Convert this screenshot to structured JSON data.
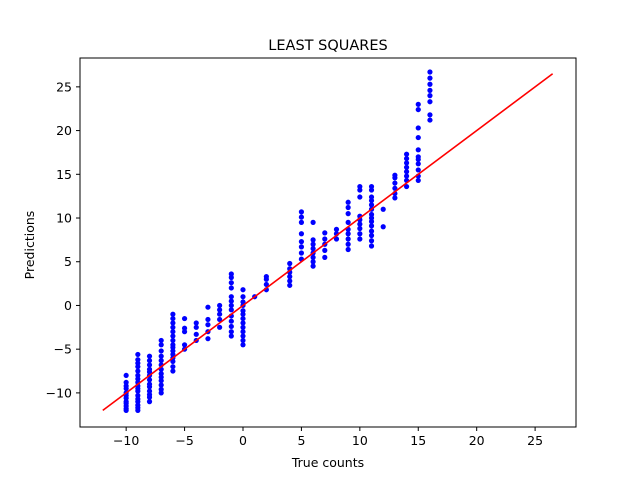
{
  "chart_data": {
    "type": "scatter",
    "title": "LEAST SQUARES",
    "xlabel": "True counts",
    "ylabel": "Predictions",
    "xlim": [
      -13.95,
      28.5
    ],
    "ylim": [
      -13.9,
      28.3
    ],
    "xticks": [
      -10,
      -5,
      0,
      5,
      10,
      15,
      20,
      25
    ],
    "yticks": [
      -10,
      -5,
      0,
      5,
      10,
      15,
      20,
      25
    ],
    "xtick_labels": [
      "−10",
      "−5",
      "0",
      "5",
      "10",
      "15",
      "20",
      "25"
    ],
    "ytick_labels": [
      "−10",
      "−5",
      "0",
      "5",
      "10",
      "15",
      "20",
      "25"
    ],
    "grid": false,
    "point_color": "#0000ff",
    "line_color": "#ff0000",
    "fit_line": {
      "x": [
        -12,
        26.5
      ],
      "y": [
        -12,
        26.5
      ]
    },
    "points": [
      [
        -10,
        -12
      ],
      [
        -10,
        -11.8
      ],
      [
        -10,
        -11.5
      ],
      [
        -10,
        -11.2
      ],
      [
        -10,
        -11
      ],
      [
        -10,
        -10.6
      ],
      [
        -10,
        -10.3
      ],
      [
        -10,
        -10
      ],
      [
        -10,
        -9.5
      ],
      [
        -10,
        -9.2
      ],
      [
        -10,
        -8.8
      ],
      [
        -10,
        -8
      ],
      [
        -9,
        -12
      ],
      [
        -9,
        -11.7
      ],
      [
        -9,
        -11.4
      ],
      [
        -9,
        -11
      ],
      [
        -9,
        -10.7
      ],
      [
        -9,
        -10.3
      ],
      [
        -9,
        -9.8
      ],
      [
        -9,
        -9.5
      ],
      [
        -9,
        -9.2
      ],
      [
        -9,
        -8.8
      ],
      [
        -9,
        -8.4
      ],
      [
        -9,
        -8
      ],
      [
        -9,
        -7.5
      ],
      [
        -9,
        -7
      ],
      [
        -9,
        -6.6
      ],
      [
        -9,
        -6.2
      ],
      [
        -9,
        -5.6
      ],
      [
        -8,
        -11
      ],
      [
        -8,
        -10.5
      ],
      [
        -8,
        -10.2
      ],
      [
        -8,
        -9.8
      ],
      [
        -8,
        -9.3
      ],
      [
        -8,
        -9
      ],
      [
        -8,
        -8.5
      ],
      [
        -8,
        -8
      ],
      [
        -8,
        -7.6
      ],
      [
        -8,
        -7.3
      ],
      [
        -8,
        -6.8
      ],
      [
        -8,
        -6.3
      ],
      [
        -8,
        -5.8
      ],
      [
        -7,
        -10
      ],
      [
        -7,
        -9.6
      ],
      [
        -7,
        -9.1
      ],
      [
        -7,
        -8.6
      ],
      [
        -7,
        -8.2
      ],
      [
        -7,
        -7.8
      ],
      [
        -7,
        -7.3
      ],
      [
        -7,
        -6.8
      ],
      [
        -7,
        -6.3
      ],
      [
        -7,
        -5.8
      ],
      [
        -7,
        -5.2
      ],
      [
        -7,
        -4.5
      ],
      [
        -7,
        -4
      ],
      [
        -6,
        -7.5
      ],
      [
        -6,
        -7
      ],
      [
        -6,
        -6.4
      ],
      [
        -6,
        -6
      ],
      [
        -6,
        -5.6
      ],
      [
        -6,
        -5.2
      ],
      [
        -6,
        -4.8
      ],
      [
        -6,
        -4.5
      ],
      [
        -6,
        -4
      ],
      [
        -6,
        -3.5
      ],
      [
        -6,
        -3
      ],
      [
        -6,
        -2.5
      ],
      [
        -6,
        -2
      ],
      [
        -6,
        -1.5
      ],
      [
        -6,
        -1
      ],
      [
        -5,
        -5
      ],
      [
        -5,
        -4.5
      ],
      [
        -5,
        -3
      ],
      [
        -5,
        -2.6
      ],
      [
        -5,
        -1.5
      ],
      [
        -4,
        -4
      ],
      [
        -4,
        -3.3
      ],
      [
        -4,
        -2.5
      ],
      [
        -4,
        -2
      ],
      [
        -3,
        -3.8
      ],
      [
        -3,
        -3
      ],
      [
        -3,
        -2.2
      ],
      [
        -3,
        -1.6
      ],
      [
        -3,
        -0.2
      ],
      [
        -2,
        -2.5
      ],
      [
        -2,
        -1.6
      ],
      [
        -2,
        -1
      ],
      [
        -2,
        -0.5
      ],
      [
        -2,
        0
      ],
      [
        -1,
        -3.5
      ],
      [
        -1,
        -3
      ],
      [
        -1,
        -2.4
      ],
      [
        -1,
        -1.8
      ],
      [
        -1,
        -1.2
      ],
      [
        -1,
        -0.5
      ],
      [
        -1,
        0
      ],
      [
        -1,
        0.5
      ],
      [
        -1,
        1
      ],
      [
        -1,
        2
      ],
      [
        -1,
        2.6
      ],
      [
        -1,
        3.2
      ],
      [
        -1,
        3.6
      ],
      [
        0,
        -4.5
      ],
      [
        0,
        -4
      ],
      [
        0,
        -3.5
      ],
      [
        0,
        -3
      ],
      [
        0,
        -2.5
      ],
      [
        0,
        -2
      ],
      [
        0,
        -1.5
      ],
      [
        0,
        -1
      ],
      [
        0,
        -0.6
      ],
      [
        0,
        0
      ],
      [
        0,
        0.4
      ],
      [
        0,
        1
      ],
      [
        0,
        1.8
      ],
      [
        1,
        1
      ],
      [
        2,
        1.8
      ],
      [
        2,
        2.4
      ],
      [
        2,
        3
      ],
      [
        2,
        3.3
      ],
      [
        4,
        2.3
      ],
      [
        4,
        2.8
      ],
      [
        4,
        3.3
      ],
      [
        4,
        3.8
      ],
      [
        4,
        4.2
      ],
      [
        4,
        4.8
      ],
      [
        5,
        5.3
      ],
      [
        5,
        6
      ],
      [
        5,
        6.7
      ],
      [
        5,
        7.3
      ],
      [
        5,
        8.2
      ],
      [
        5,
        9.5
      ],
      [
        5,
        10.1
      ],
      [
        5,
        10.7
      ],
      [
        6,
        4.5
      ],
      [
        6,
        5
      ],
      [
        6,
        5.5
      ],
      [
        6,
        6
      ],
      [
        6,
        6.5
      ],
      [
        6,
        7
      ],
      [
        6,
        7.5
      ],
      [
        6,
        9.5
      ],
      [
        7,
        5.5
      ],
      [
        7,
        6.3
      ],
      [
        7,
        7
      ],
      [
        7,
        7.6
      ],
      [
        7,
        8.3
      ],
      [
        8,
        7.6
      ],
      [
        8,
        8.2
      ],
      [
        8,
        8.7
      ],
      [
        9,
        6.4
      ],
      [
        9,
        7
      ],
      [
        9,
        7.6
      ],
      [
        9,
        8.2
      ],
      [
        9,
        8.7
      ],
      [
        9,
        9.5
      ],
      [
        9,
        10.5
      ],
      [
        9,
        11.2
      ],
      [
        9,
        11.8
      ],
      [
        10,
        7.6
      ],
      [
        10,
        8.2
      ],
      [
        10,
        8.8
      ],
      [
        10,
        9.3
      ],
      [
        10,
        9.8
      ],
      [
        10,
        10.2
      ],
      [
        10,
        12.4
      ],
      [
        10,
        13.2
      ],
      [
        10,
        13.6
      ],
      [
        11,
        6.8
      ],
      [
        11,
        7.4
      ],
      [
        11,
        8
      ],
      [
        11,
        8.5
      ],
      [
        11,
        9.1
      ],
      [
        11,
        9.6
      ],
      [
        11,
        10
      ],
      [
        11,
        10.4
      ],
      [
        11,
        11
      ],
      [
        11,
        11.5
      ],
      [
        11,
        12
      ],
      [
        11,
        12.4
      ],
      [
        11,
        13.2
      ],
      [
        11,
        13.6
      ],
      [
        12,
        9
      ],
      [
        12,
        11
      ],
      [
        13,
        12.3
      ],
      [
        13,
        12.8
      ],
      [
        13,
        13.4
      ],
      [
        13,
        14
      ],
      [
        13,
        14.6
      ],
      [
        13,
        14.9
      ],
      [
        14,
        13.6
      ],
      [
        14,
        14.3
      ],
      [
        14,
        14.8
      ],
      [
        14,
        15.3
      ],
      [
        14,
        15.8
      ],
      [
        14,
        16.3
      ],
      [
        14,
        16.8
      ],
      [
        14,
        17.3
      ],
      [
        15,
        14.3
      ],
      [
        15,
        14.8
      ],
      [
        15,
        15.5
      ],
      [
        15,
        16.2
      ],
      [
        15,
        16.7
      ],
      [
        15,
        17
      ],
      [
        15,
        17.8
      ],
      [
        15,
        19.2
      ],
      [
        15,
        20.3
      ],
      [
        15,
        22.4
      ],
      [
        15,
        23
      ],
      [
        16,
        21.2
      ],
      [
        16,
        21.8
      ],
      [
        16,
        23.3
      ],
      [
        16,
        24
      ],
      [
        16,
        24.6
      ],
      [
        16,
        25.3
      ],
      [
        16,
        26
      ],
      [
        16,
        26.7
      ]
    ]
  }
}
